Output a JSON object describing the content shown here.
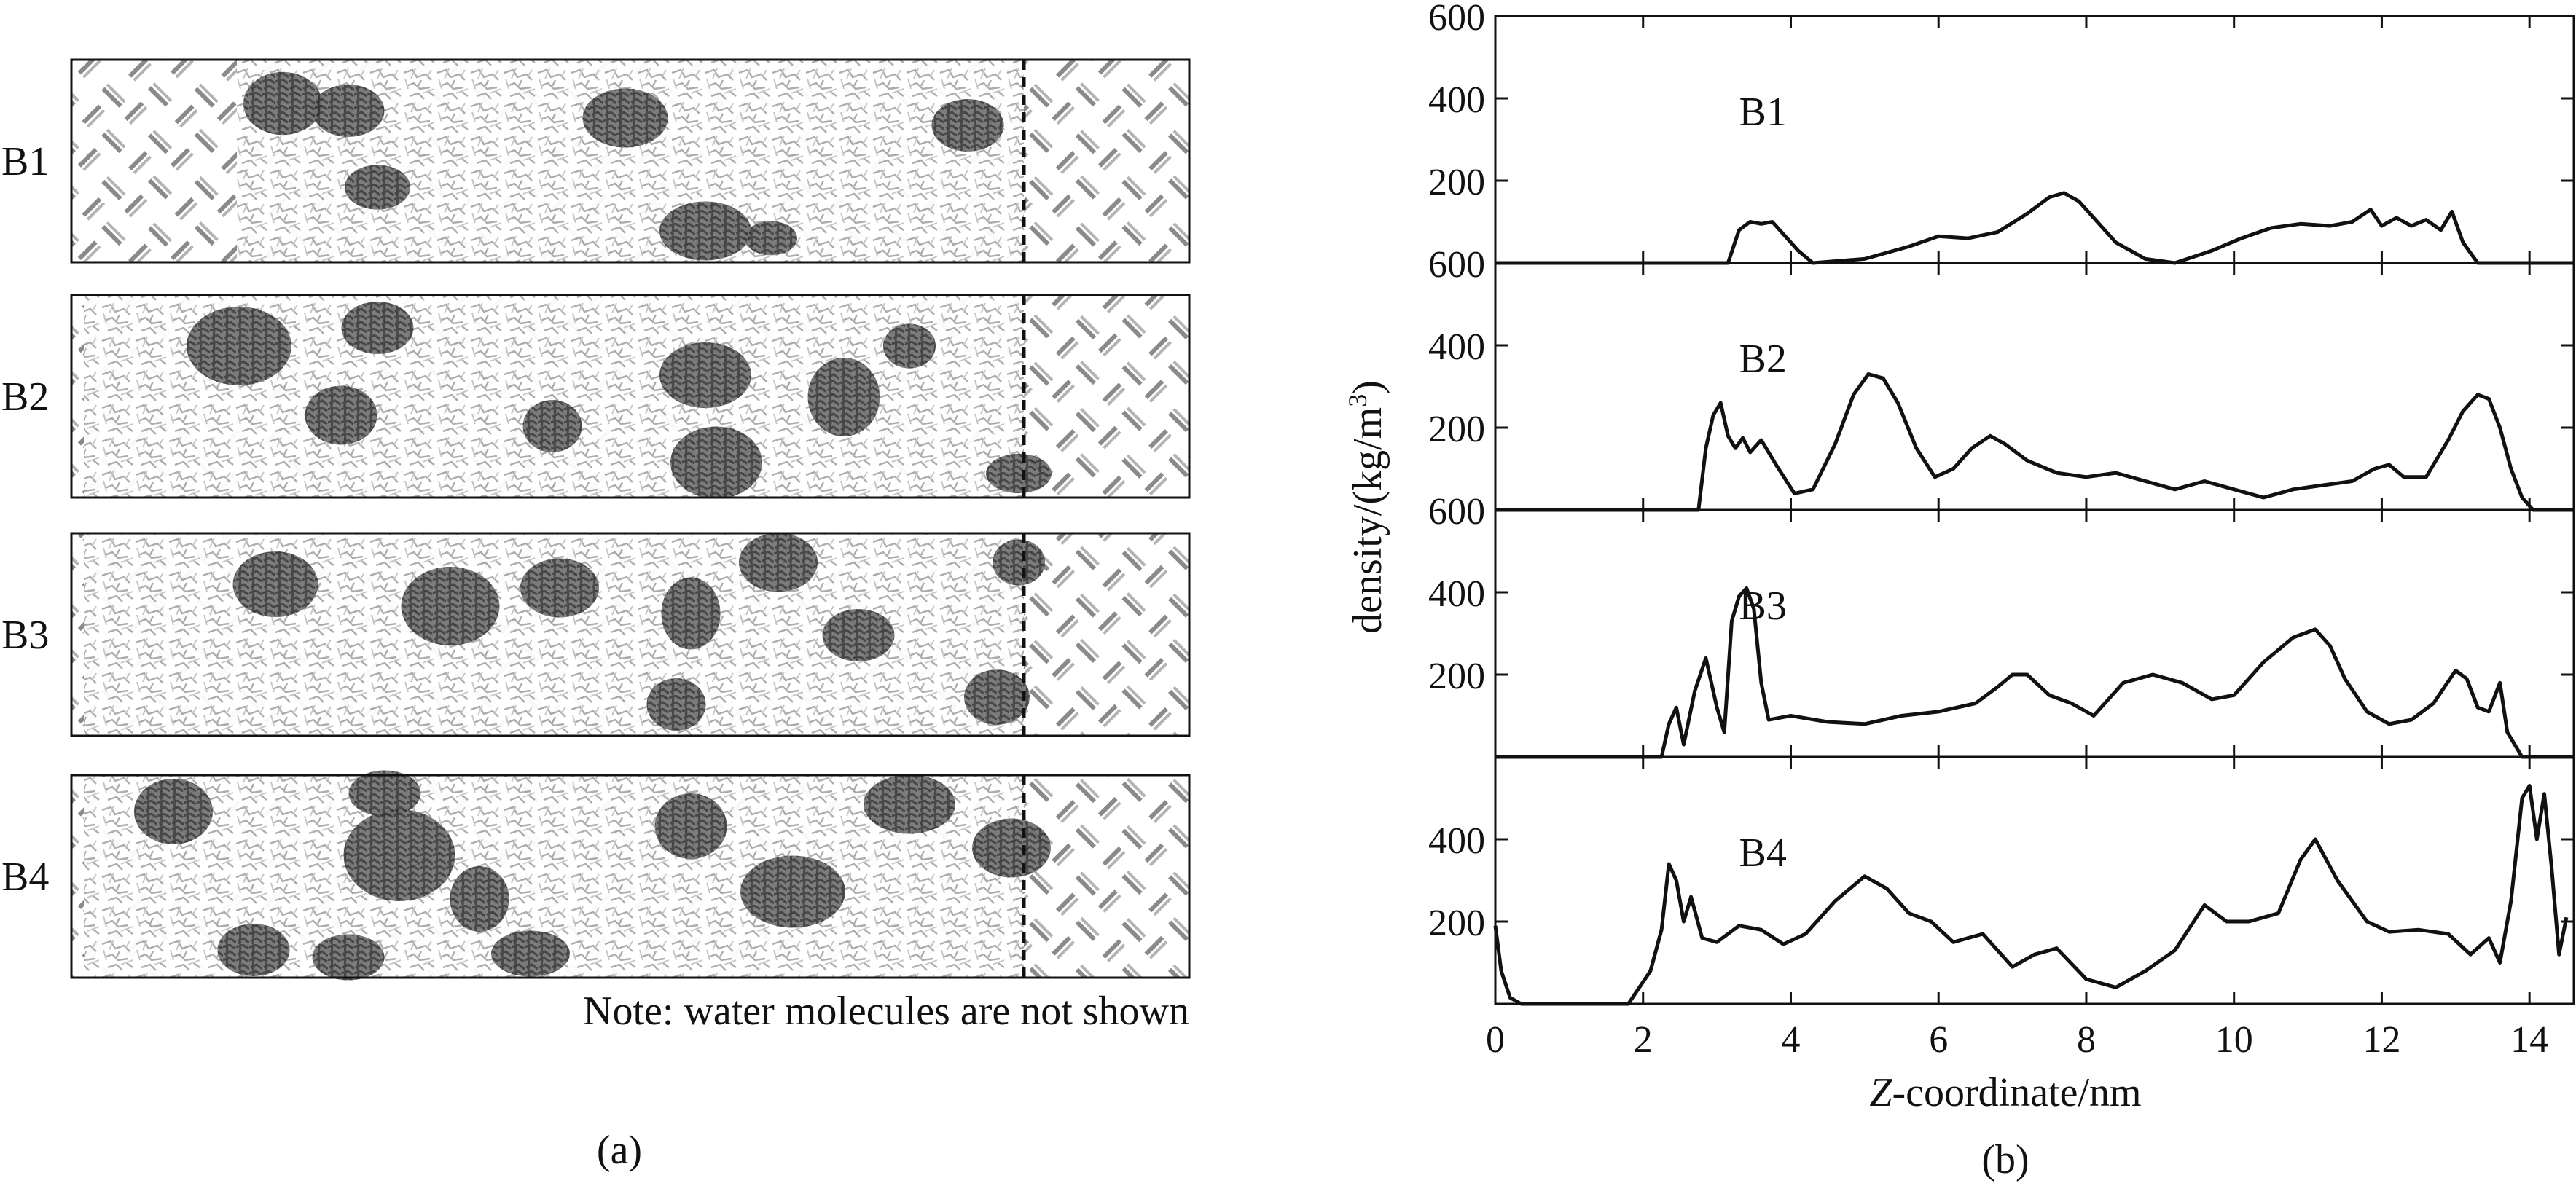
{
  "panel_a": {
    "caption": "(a)",
    "row_labels": [
      "B1",
      "B2",
      "B3",
      "B4"
    ],
    "note": "Note: water molecules are not shown"
  },
  "panel_b": {
    "caption": "(b)"
  },
  "chart_data": {
    "type": "line",
    "stacked_subplots": 4,
    "xlabel_italic": "Z",
    "xlabel": "-coordinate/nm",
    "ylabel": "density/(kg/m",
    "ylabel_superscript": "3",
    "ylabel_suffix": ")",
    "xlim": [
      0,
      14.6
    ],
    "xticks": [
      0,
      2,
      4,
      6,
      8,
      10,
      12,
      14
    ],
    "ylim": [
      0,
      600
    ],
    "yticks": [
      200,
      400,
      600
    ],
    "grid": false,
    "series": [
      {
        "name": "B1",
        "x": [
          0,
          3.15,
          3.3,
          3.45,
          3.6,
          3.75,
          3.9,
          4.1,
          4.3,
          5.0,
          5.6,
          6.0,
          6.4,
          6.8,
          7.2,
          7.5,
          7.7,
          7.9,
          8.1,
          8.4,
          8.8,
          9.2,
          9.7,
          10.1,
          10.5,
          10.9,
          11.3,
          11.6,
          11.85,
          12.0,
          12.2,
          12.4,
          12.6,
          12.8,
          12.95,
          13.1,
          13.3,
          14.6
        ],
        "y": [
          0,
          0,
          80,
          100,
          95,
          100,
          70,
          30,
          0,
          10,
          40,
          65,
          60,
          75,
          120,
          160,
          170,
          150,
          110,
          50,
          10,
          0,
          30,
          60,
          85,
          95,
          90,
          100,
          130,
          90,
          110,
          90,
          105,
          80,
          125,
          50,
          0,
          0
        ]
      },
      {
        "name": "B2",
        "x": [
          0,
          2.75,
          2.85,
          2.95,
          3.05,
          3.15,
          3.25,
          3.35,
          3.45,
          3.6,
          3.8,
          4.05,
          4.3,
          4.6,
          4.85,
          5.05,
          5.25,
          5.45,
          5.7,
          5.95,
          6.2,
          6.45,
          6.7,
          6.9,
          7.2,
          7.6,
          8.0,
          8.4,
          8.8,
          9.2,
          9.6,
          10.0,
          10.4,
          10.8,
          11.2,
          11.6,
          11.9,
          12.1,
          12.3,
          12.6,
          12.9,
          13.1,
          13.3,
          13.45,
          13.6,
          13.75,
          13.9,
          14.05,
          14.6
        ],
        "y": [
          0,
          0,
          150,
          230,
          260,
          180,
          150,
          175,
          140,
          170,
          110,
          40,
          50,
          160,
          280,
          330,
          320,
          260,
          150,
          80,
          100,
          150,
          180,
          160,
          120,
          90,
          80,
          90,
          70,
          50,
          70,
          50,
          30,
          50,
          60,
          70,
          100,
          110,
          80,
          80,
          170,
          240,
          280,
          270,
          200,
          100,
          30,
          0,
          0
        ]
      },
      {
        "name": "B3",
        "x": [
          0,
          2.25,
          2.35,
          2.45,
          2.55,
          2.7,
          2.85,
          3.0,
          3.1,
          3.2,
          3.3,
          3.4,
          3.5,
          3.6,
          3.7,
          4.0,
          4.5,
          5.0,
          5.5,
          6.0,
          6.5,
          6.8,
          7.0,
          7.2,
          7.5,
          7.8,
          8.1,
          8.5,
          8.9,
          9.3,
          9.7,
          10.0,
          10.4,
          10.8,
          11.1,
          11.3,
          11.5,
          11.8,
          12.1,
          12.4,
          12.7,
          13.0,
          13.15,
          13.3,
          13.45,
          13.6,
          13.7,
          13.9,
          14.6
        ],
        "y": [
          0,
          0,
          80,
          120,
          30,
          160,
          240,
          120,
          60,
          330,
          390,
          410,
          360,
          180,
          90,
          100,
          85,
          80,
          100,
          110,
          130,
          170,
          200,
          200,
          150,
          130,
          100,
          180,
          200,
          180,
          140,
          150,
          230,
          290,
          310,
          270,
          190,
          110,
          80,
          90,
          130,
          210,
          190,
          120,
          110,
          180,
          60,
          0,
          0
        ]
      },
      {
        "name": "B4",
        "x": [
          0,
          0.08,
          0.2,
          0.35,
          1.8,
          1.95,
          2.1,
          2.25,
          2.35,
          2.45,
          2.55,
          2.65,
          2.8,
          3.0,
          3.3,
          3.6,
          3.9,
          4.2,
          4.6,
          5.0,
          5.3,
          5.6,
          5.9,
          6.2,
          6.6,
          7.0,
          7.3,
          7.6,
          8.0,
          8.4,
          8.8,
          9.2,
          9.6,
          9.9,
          10.2,
          10.6,
          10.9,
          11.1,
          11.4,
          11.8,
          12.1,
          12.5,
          12.9,
          13.2,
          13.45,
          13.6,
          13.75,
          13.9,
          14.0,
          14.1,
          14.2,
          14.3,
          14.4,
          14.5
        ],
        "y": [
          190,
          80,
          15,
          0,
          0,
          40,
          80,
          180,
          340,
          300,
          200,
          260,
          160,
          150,
          190,
          180,
          145,
          170,
          250,
          310,
          280,
          220,
          200,
          150,
          170,
          90,
          120,
          135,
          60,
          40,
          80,
          130,
          240,
          200,
          200,
          220,
          350,
          400,
          300,
          200,
          175,
          180,
          170,
          120,
          160,
          100,
          250,
          500,
          530,
          400,
          510,
          330,
          120,
          210
        ]
      }
    ]
  }
}
